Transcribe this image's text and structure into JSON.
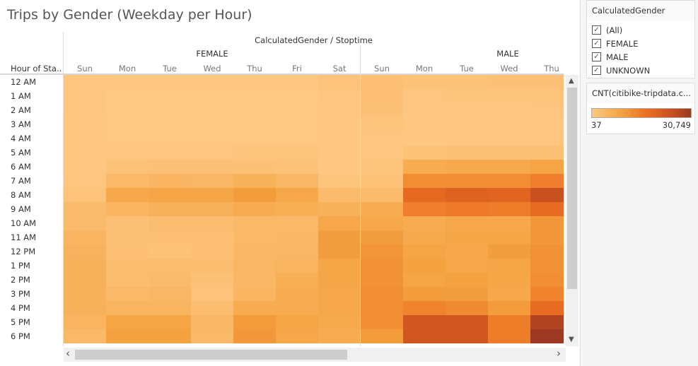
{
  "title": "Trips by Gender (Weekday per Hour)",
  "chart_data": {
    "type": "heatmap",
    "title": "Trips by Gender (Weekday per Hour)",
    "column_header": "CalculatedGender / Stoptime",
    "row_header": "Hour of Sta..",
    "groups": [
      {
        "name": "FEMALE",
        "days": [
          "Sun",
          "Mon",
          "Tue",
          "Wed",
          "Thu",
          "Fri",
          "Sat"
        ]
      },
      {
        "name": "MALE",
        "days": [
          "Sun",
          "Mon",
          "Tue",
          "Wed",
          "Thu"
        ]
      }
    ],
    "rows": [
      "12 AM",
      "1 AM",
      "2 AM",
      "3 AM",
      "4 AM",
      "5 AM",
      "6 AM",
      "7 AM",
      "8 AM",
      "9 AM",
      "10 AM",
      "11 AM",
      "12 PM",
      "1 PM",
      "2 PM",
      "3 PM",
      "4 PM",
      "5 PM",
      "6 PM"
    ],
    "values": [
      [
        651,
        344,
        344,
        344,
        344,
        344,
        1265,
        2187,
        1573,
        1573,
        1880,
        1880
      ],
      [
        651,
        37,
        37,
        37,
        37,
        37,
        651,
        2187,
        651,
        958,
        958,
        958
      ],
      [
        651,
        37,
        37,
        37,
        37,
        37,
        344,
        1880,
        344,
        344,
        344,
        651
      ],
      [
        344,
        37,
        37,
        37,
        37,
        37,
        344,
        958,
        344,
        344,
        344,
        344
      ],
      [
        344,
        37,
        37,
        37,
        37,
        37,
        344,
        651,
        344,
        344,
        651,
        651
      ],
      [
        344,
        651,
        651,
        651,
        958,
        958,
        344,
        344,
        1573,
        1880,
        1880,
        1880
      ],
      [
        344,
        1573,
        1880,
        1880,
        1880,
        1573,
        344,
        958,
        6794,
        7408,
        7408,
        8636
      ],
      [
        651,
        3722,
        4644,
        4337,
        5565,
        4337,
        958,
        1573,
        12322,
        12322,
        12322,
        14472
      ],
      [
        1265,
        7715,
        8329,
        8329,
        10172,
        8022,
        3108,
        3108,
        18464,
        20000,
        19386,
        24607
      ],
      [
        3108,
        4644,
        5565,
        5565,
        6794,
        6179,
        5565,
        6794,
        14472,
        15393,
        14779,
        17850
      ],
      [
        3108,
        1880,
        2494,
        2494,
        3722,
        3722,
        8022,
        7715,
        6794,
        8022,
        7715,
        10786
      ],
      [
        4644,
        1880,
        2187,
        2187,
        3722,
        4030,
        9865,
        9865,
        7408,
        8329,
        8329,
        10786
      ],
      [
        5258,
        2187,
        1573,
        2187,
        4030,
        4337,
        9865,
        11093,
        8636,
        7715,
        9865,
        11708
      ],
      [
        5565,
        2494,
        2494,
        2494,
        4337,
        4951,
        8329,
        11708,
        9251,
        8022,
        8329,
        11708
      ],
      [
        5565,
        2494,
        3108,
        1880,
        4030,
        6179,
        8329,
        11708,
        8636,
        9251,
        8329,
        12322
      ],
      [
        5565,
        3722,
        4337,
        1265,
        4644,
        6794,
        8022,
        12322,
        10172,
        9865,
        7715,
        13857
      ],
      [
        5565,
        4951,
        4951,
        2494,
        6794,
        6794,
        8022,
        12322,
        13857,
        12936,
        10172,
        17850
      ],
      [
        4951,
        8636,
        8636,
        4337,
        10172,
        8636,
        7408,
        12322,
        23071,
        23071,
        14779,
        27678
      ],
      [
        3722,
        9251,
        9251,
        3722,
        10786,
        8022,
        6794,
        10172,
        23378,
        23378,
        14779,
        30749
      ]
    ],
    "color_range": [
      37,
      30749
    ],
    "colors": [
      "#fec883",
      "#f4a240",
      "#ec6f22",
      "#c9511f",
      "#9c3823"
    ]
  },
  "filter": {
    "title": "CalculatedGender",
    "options": [
      {
        "label": "(All)",
        "checked": true
      },
      {
        "label": "FEMALE",
        "checked": true
      },
      {
        "label": "MALE",
        "checked": true
      },
      {
        "label": "UNKNOWN",
        "checked": true
      }
    ]
  },
  "legend": {
    "title": "CNT(citibike-tripdata.c...",
    "min": "37",
    "max": "30,749"
  },
  "scroll": {
    "up": "▲",
    "down": "▼",
    "left": "‹",
    "right": "›"
  }
}
